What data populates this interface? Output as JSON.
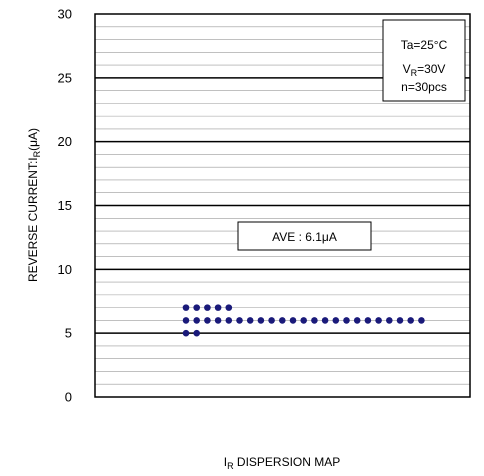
{
  "chart_data": {
    "type": "scatter",
    "xlabel": {
      "main": "I",
      "sub": "R",
      "rest": " DISPERSION MAP"
    },
    "ylabel": {
      "main": "REVERSE CURRENT:I",
      "sub": "R",
      "rest": "(μA)"
    },
    "ylim": [
      0,
      30
    ],
    "yticks": [
      "0",
      "5",
      "10",
      "15",
      "20",
      "25",
      "30"
    ],
    "grid": true,
    "conditions": {
      "line1": "Ta=25°C",
      "line2": {
        "main": "V",
        "sub": "R",
        "rest": "=30V"
      },
      "line3": "n=30pcs"
    },
    "average_label": "AVE : 6.1μA",
    "average": 6.1,
    "point_color": "#1a1a7a",
    "series": [
      {
        "y": 7,
        "count": 5
      },
      {
        "y": 6,
        "count": 23
      },
      {
        "y": 5,
        "count": 2
      }
    ]
  }
}
